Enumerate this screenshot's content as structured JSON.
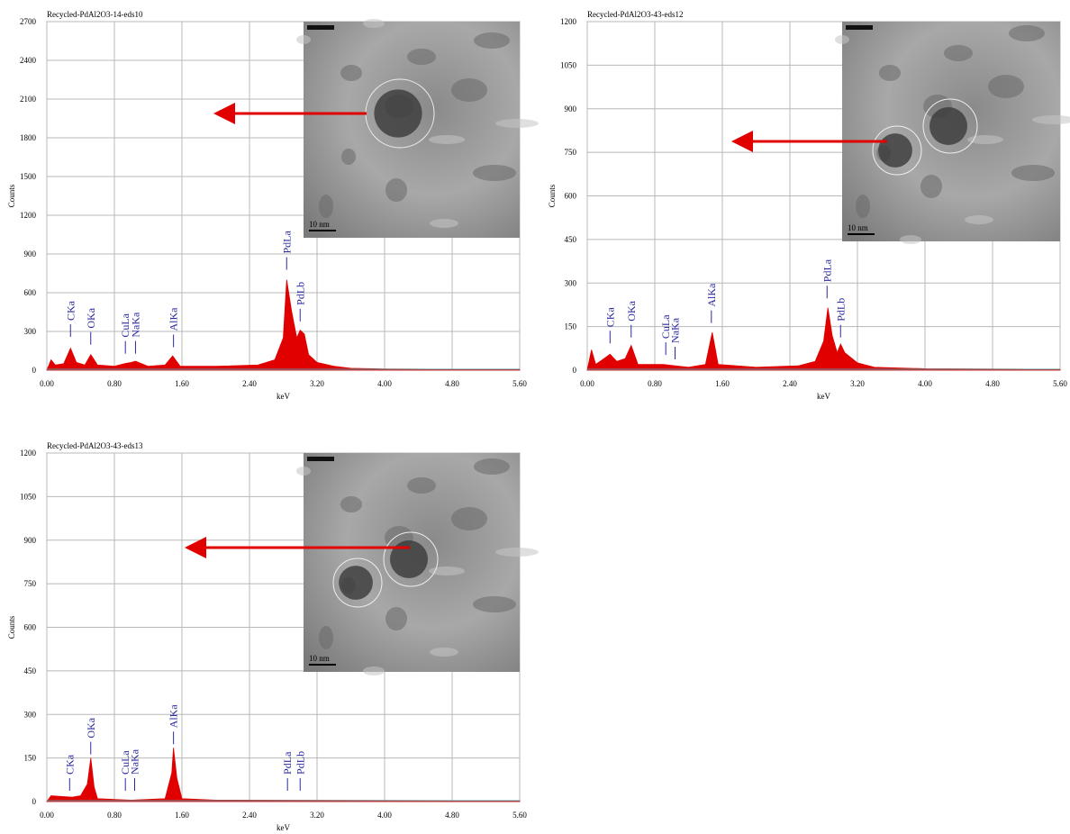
{
  "chart_data": [
    {
      "type": "area",
      "title": "Recycled-PdAl2O3-14-eds10",
      "xlabel": "keV",
      "ylabel": "Counts",
      "color": "#e00000",
      "grid": true,
      "xlim": [
        0,
        5.6
      ],
      "ylim": [
        0,
        2700
      ],
      "xticks": [
        {
          "value": 0,
          "label": "0.00"
        },
        {
          "value": 0.8,
          "label": "0.80"
        },
        {
          "value": 1.6,
          "label": "1.60"
        },
        {
          "value": 2.4,
          "label": "2.40"
        },
        {
          "value": 3.2,
          "label": "3.20"
        },
        {
          "value": 4,
          "label": "4.00"
        },
        {
          "value": 4.8,
          "label": "4.80"
        },
        {
          "value": 5.6,
          "label": "5.60"
        }
      ],
      "yticks": [
        0,
        300,
        600,
        900,
        1200,
        1500,
        1800,
        2100,
        2400,
        2700
      ],
      "x": [
        0,
        0.05,
        0.1,
        0.2,
        0.28,
        0.35,
        0.45,
        0.52,
        0.6,
        0.8,
        0.92,
        1.0,
        1.05,
        1.2,
        1.4,
        1.49,
        1.58,
        2.0,
        2.5,
        2.7,
        2.8,
        2.84,
        2.9,
        2.96,
        3.0,
        3.05,
        3.1,
        3.2,
        3.4,
        3.6,
        4.0,
        5.6
      ],
      "values": [
        0,
        80,
        40,
        50,
        170,
        60,
        40,
        120,
        40,
        30,
        50,
        60,
        70,
        30,
        40,
        110,
        30,
        30,
        40,
        80,
        250,
        700,
        450,
        250,
        310,
        280,
        120,
        60,
        30,
        15,
        10,
        5
      ],
      "peaks": [
        {
          "label": "CKa",
          "x": 0.28,
          "y": 230
        },
        {
          "label": "OKa",
          "x": 0.52,
          "y": 170
        },
        {
          "label": "CuLa",
          "x": 0.93,
          "y": 100
        },
        {
          "label": "NaKa",
          "x": 1.05,
          "y": 100
        },
        {
          "label": "AlKa",
          "x": 1.5,
          "y": 150
        },
        {
          "label": "PdLa",
          "x": 2.84,
          "y": 750
        },
        {
          "label": "PdLb",
          "x": 3.0,
          "y": 350
        }
      ],
      "scale_bar": "10 nm"
    },
    {
      "type": "area",
      "title": "Recycled-PdAl2O3-43-eds12",
      "xlabel": "keV",
      "ylabel": "Counts",
      "color": "#e00000",
      "grid": true,
      "xlim": [
        0,
        5.6
      ],
      "ylim": [
        0,
        1200
      ],
      "xticks": [
        {
          "value": 0,
          "label": "0.00"
        },
        {
          "value": 0.8,
          "label": "0.80"
        },
        {
          "value": 1.6,
          "label": "1.60"
        },
        {
          "value": 2.4,
          "label": "2.40"
        },
        {
          "value": 3.2,
          "label": "3.20"
        },
        {
          "value": 4,
          "label": "4.00"
        },
        {
          "value": 4.8,
          "label": "4.80"
        },
        {
          "value": 5.6,
          "label": "5.60"
        }
      ],
      "yticks": [
        0,
        150,
        300,
        450,
        600,
        750,
        900,
        1050,
        1200
      ],
      "x": [
        0,
        0.05,
        0.1,
        0.2,
        0.27,
        0.35,
        0.45,
        0.52,
        0.6,
        0.9,
        1.2,
        1.4,
        1.48,
        1.55,
        2.0,
        2.5,
        2.7,
        2.8,
        2.85,
        2.9,
        2.96,
        3.0,
        3.05,
        3.2,
        3.4,
        4.0,
        5.6
      ],
      "values": [
        0,
        70,
        20,
        40,
        55,
        30,
        40,
        85,
        20,
        20,
        10,
        20,
        130,
        20,
        10,
        15,
        30,
        100,
        215,
        120,
        60,
        90,
        60,
        25,
        10,
        5,
        3
      ],
      "peaks": [
        {
          "label": "CKa",
          "x": 0.27,
          "y": 80
        },
        {
          "label": "OKa",
          "x": 0.52,
          "y": 100
        },
        {
          "label": "CuLa",
          "x": 0.93,
          "y": 40
        },
        {
          "label": "NaKa",
          "x": 1.04,
          "y": 25
        },
        {
          "label": "AlKa",
          "x": 1.47,
          "y": 150
        },
        {
          "label": "PdLa",
          "x": 2.84,
          "y": 235
        },
        {
          "label": "PdLb",
          "x": 3.0,
          "y": 100
        }
      ],
      "scale_bar": "10 nm"
    },
    {
      "type": "area",
      "title": "Recycled-PdAl2O3-43-eds13",
      "xlabel": "keV",
      "ylabel": "Counts",
      "color": "#e00000",
      "grid": true,
      "xlim": [
        0,
        5.6
      ],
      "ylim": [
        0,
        1200
      ],
      "xticks": [
        {
          "value": 0,
          "label": "0.00"
        },
        {
          "value": 0.8,
          "label": "0.80"
        },
        {
          "value": 1.6,
          "label": "1.60"
        },
        {
          "value": 2.4,
          "label": "2.40"
        },
        {
          "value": 3.2,
          "label": "3.20"
        },
        {
          "value": 4,
          "label": "4.00"
        },
        {
          "value": 4.8,
          "label": "4.80"
        },
        {
          "value": 5.6,
          "label": "5.60"
        }
      ],
      "yticks": [
        0,
        150,
        300,
        450,
        600,
        750,
        900,
        1050,
        1200
      ],
      "x": [
        0,
        0.05,
        0.3,
        0.4,
        0.48,
        0.52,
        0.56,
        0.6,
        1.0,
        1.4,
        1.48,
        1.5,
        1.54,
        1.6,
        2.0,
        5.6
      ],
      "values": [
        0,
        20,
        15,
        20,
        60,
        150,
        50,
        10,
        5,
        10,
        100,
        185,
        80,
        10,
        5,
        3
      ],
      "peaks": [
        {
          "label": "CKa",
          "x": 0.27,
          "y": 25
        },
        {
          "label": "OKa",
          "x": 0.52,
          "y": 150
        },
        {
          "label": "CuLa",
          "x": 0.93,
          "y": 25
        },
        {
          "label": "NaKa",
          "x": 1.04,
          "y": 25
        },
        {
          "label": "AlKa",
          "x": 1.5,
          "y": 185
        },
        {
          "label": "PdLa",
          "x": 2.85,
          "y": 25
        },
        {
          "label": "PdLb",
          "x": 3.0,
          "y": 25
        }
      ],
      "scale_bar": "10 nm"
    }
  ]
}
